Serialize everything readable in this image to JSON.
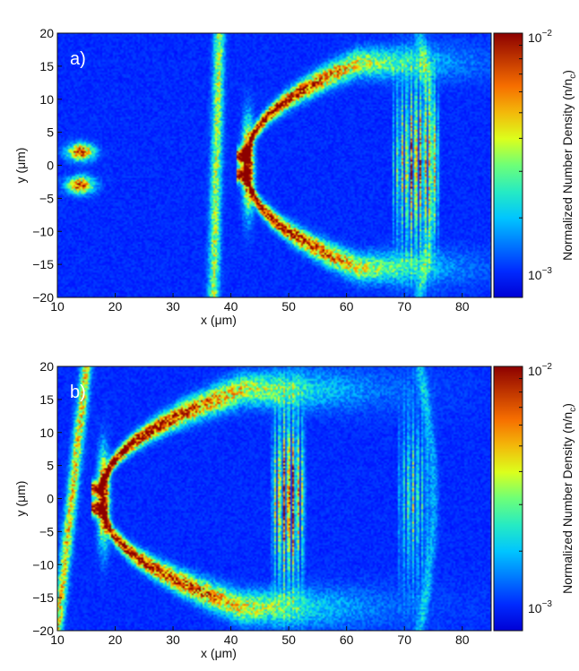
{
  "colors": {
    "background": "#0b1a78",
    "colormap": [
      "#00008f",
      "#0040ff",
      "#00c0ff",
      "#40ff80",
      "#ffe000",
      "#ff6000",
      "#900000"
    ]
  },
  "chart_data": [
    {
      "type": "heatmap",
      "panel_label": "a)",
      "xlabel": "x (μm)",
      "ylabel": "y (μm)",
      "xlim": [
        10,
        85
      ],
      "ylim": [
        -20,
        20
      ],
      "xticks": [
        10,
        20,
        30,
        40,
        50,
        60,
        70,
        80
      ],
      "yticks": [
        20,
        15,
        10,
        5,
        0,
        -5,
        -10,
        -15,
        -20
      ],
      "colorbar": {
        "label": "Normalized Number Density (n/n",
        "label_sub": "c",
        "label_close": ")",
        "scale": "log",
        "range": [
          0.001,
          0.01
        ],
        "max_base": "10",
        "max_exp": "−2",
        "min_base": "10",
        "min_exp": "−3"
      },
      "features": [
        {
          "kind": "bubble_sheath",
          "apex_x": 43,
          "half_width_y": 14,
          "end_x": 62,
          "peak": 0.95
        },
        {
          "kind": "shock_line",
          "x_top": 38,
          "y_top": 20,
          "x_bottom": 37,
          "y_bottom": -20,
          "peak": 0.45
        },
        {
          "kind": "wave_packet",
          "x_start": 68,
          "x_end": 76,
          "y_half": 12,
          "peak": 0.75
        },
        {
          "kind": "front_arc",
          "x_center": 73,
          "peak": 0.3
        },
        {
          "kind": "injection_blob",
          "x": 14,
          "y": 2,
          "peak": 0.8
        },
        {
          "kind": "injection_blob",
          "x": 14,
          "y": -3,
          "peak": 0.8
        },
        {
          "kind": "ambient_haze",
          "peak": 0.25
        }
      ]
    },
    {
      "type": "heatmap",
      "panel_label": "b)",
      "xlabel": "x (μm)",
      "ylabel": "y (μm)",
      "xlim": [
        10,
        85
      ],
      "ylim": [
        -20,
        20
      ],
      "xticks": [
        10,
        20,
        30,
        40,
        50,
        60,
        70,
        80
      ],
      "yticks": [
        20,
        15,
        10,
        5,
        0,
        -5,
        -10,
        -15,
        -20
      ],
      "colorbar": {
        "label": "Normalized Number Density (n/n",
        "label_sub": "c",
        "label_close": ")",
        "scale": "log",
        "range": [
          0.001,
          0.01
        ],
        "max_base": "10",
        "max_exp": "−2",
        "min_base": "10",
        "min_exp": "−3"
      },
      "features": [
        {
          "kind": "bubble_sheath",
          "apex_x": 18,
          "half_width_y": 15,
          "end_x": 42,
          "peak": 0.95
        },
        {
          "kind": "shock_line",
          "x_top": 15,
          "y_top": 20,
          "x_bottom": 10,
          "y_bottom": -20,
          "peak": 0.55
        },
        {
          "kind": "wave_packet",
          "x_start": 47,
          "x_end": 53,
          "y_half": 12,
          "peak": 0.9
        },
        {
          "kind": "wave_packet",
          "x_start": 69,
          "x_end": 74,
          "y_half": 12,
          "peak": 0.45
        },
        {
          "kind": "front_arc",
          "x_center": 73,
          "peak": 0.3
        },
        {
          "kind": "ambient_haze",
          "peak": 0.25
        }
      ]
    }
  ]
}
